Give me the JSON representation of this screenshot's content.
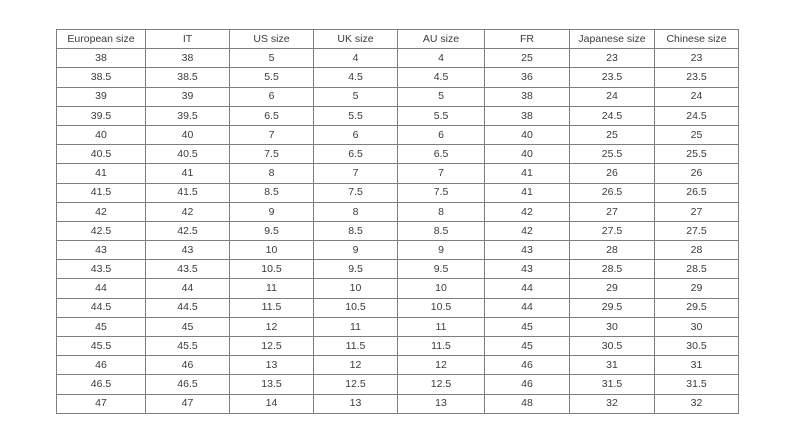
{
  "page": {
    "background": "#ffffff",
    "border_color": "#7f7f7f",
    "text_color": "#3b3b3b"
  },
  "table": {
    "headers": [
      "European size",
      "IT",
      "US size",
      "UK size",
      "AU size",
      "FR",
      "Japanese size",
      "Chinese size"
    ],
    "rows": [
      [
        "38",
        "38",
        "5",
        "4",
        "4",
        "25",
        "23",
        "23"
      ],
      [
        "38.5",
        "38.5",
        "5.5",
        "4.5",
        "4.5",
        "36",
        "23.5",
        "23.5"
      ],
      [
        "39",
        "39",
        "6",
        "5",
        "5",
        "38",
        "24",
        "24"
      ],
      [
        "39.5",
        "39.5",
        "6.5",
        "5.5",
        "5.5",
        "38",
        "24.5",
        "24.5"
      ],
      [
        "40",
        "40",
        "7",
        "6",
        "6",
        "40",
        "25",
        "25"
      ],
      [
        "40.5",
        "40.5",
        "7.5",
        "6.5",
        "6.5",
        "40",
        "25.5",
        "25.5"
      ],
      [
        "41",
        "41",
        "8",
        "7",
        "7",
        "41",
        "26",
        "26"
      ],
      [
        "41.5",
        "41.5",
        "8.5",
        "7.5",
        "7.5",
        "41",
        "26.5",
        "26.5"
      ],
      [
        "42",
        "42",
        "9",
        "8",
        "8",
        "42",
        "27",
        "27"
      ],
      [
        "42.5",
        "42.5",
        "9.5",
        "8.5",
        "8.5",
        "42",
        "27.5",
        "27.5"
      ],
      [
        "43",
        "43",
        "10",
        "9",
        "9",
        "43",
        "28",
        "28"
      ],
      [
        "43.5",
        "43.5",
        "10.5",
        "9.5",
        "9.5",
        "43",
        "28.5",
        "28.5"
      ],
      [
        "44",
        "44",
        "11",
        "10",
        "10",
        "44",
        "29",
        "29"
      ],
      [
        "44.5",
        "44.5",
        "11.5",
        "10.5",
        "10.5",
        "44",
        "29.5",
        "29.5"
      ],
      [
        "45",
        "45",
        "12",
        "11",
        "11",
        "45",
        "30",
        "30"
      ],
      [
        "45.5",
        "45.5",
        "12.5",
        "11.5",
        "11.5",
        "45",
        "30.5",
        "30.5"
      ],
      [
        "46",
        "46",
        "13",
        "12",
        "12",
        "46",
        "31",
        "31"
      ],
      [
        "46.5",
        "46.5",
        "13.5",
        "12.5",
        "12.5",
        "46",
        "31.5",
        "31.5"
      ],
      [
        "47",
        "47",
        "14",
        "13",
        "13",
        "48",
        "32",
        "32"
      ]
    ]
  },
  "chart_data": {
    "type": "table",
    "columns": [
      "European size",
      "IT",
      "US size",
      "UK size",
      "AU size",
      "FR",
      "Japanese size",
      "Chinese size"
    ],
    "rows": [
      [
        38,
        38,
        5,
        4,
        4,
        25,
        23,
        23
      ],
      [
        38.5,
        38.5,
        5.5,
        4.5,
        4.5,
        36,
        23.5,
        23.5
      ],
      [
        39,
        39,
        6,
        5,
        5,
        38,
        24,
        24
      ],
      [
        39.5,
        39.5,
        6.5,
        5.5,
        5.5,
        38,
        24.5,
        24.5
      ],
      [
        40,
        40,
        7,
        6,
        6,
        40,
        25,
        25
      ],
      [
        40.5,
        40.5,
        7.5,
        6.5,
        6.5,
        40,
        25.5,
        25.5
      ],
      [
        41,
        41,
        8,
        7,
        7,
        41,
        26,
        26
      ],
      [
        41.5,
        41.5,
        8.5,
        7.5,
        7.5,
        41,
        26.5,
        26.5
      ],
      [
        42,
        42,
        9,
        8,
        8,
        42,
        27,
        27
      ],
      [
        42.5,
        42.5,
        9.5,
        8.5,
        8.5,
        42,
        27.5,
        27.5
      ],
      [
        43,
        43,
        10,
        9,
        9,
        43,
        28,
        28
      ],
      [
        43.5,
        43.5,
        10.5,
        9.5,
        9.5,
        43,
        28.5,
        28.5
      ],
      [
        44,
        44,
        11,
        10,
        10,
        44,
        29,
        29
      ],
      [
        44.5,
        44.5,
        11.5,
        10.5,
        10.5,
        44,
        29.5,
        29.5
      ],
      [
        45,
        45,
        12,
        11,
        11,
        45,
        30,
        30
      ],
      [
        45.5,
        45.5,
        12.5,
        11.5,
        11.5,
        45,
        30.5,
        30.5
      ],
      [
        46,
        46,
        13,
        12,
        12,
        46,
        31,
        31
      ],
      [
        46.5,
        46.5,
        13.5,
        12.5,
        12.5,
        46,
        31.5,
        31.5
      ],
      [
        47,
        47,
        14,
        13,
        13,
        48,
        32,
        32
      ]
    ]
  }
}
